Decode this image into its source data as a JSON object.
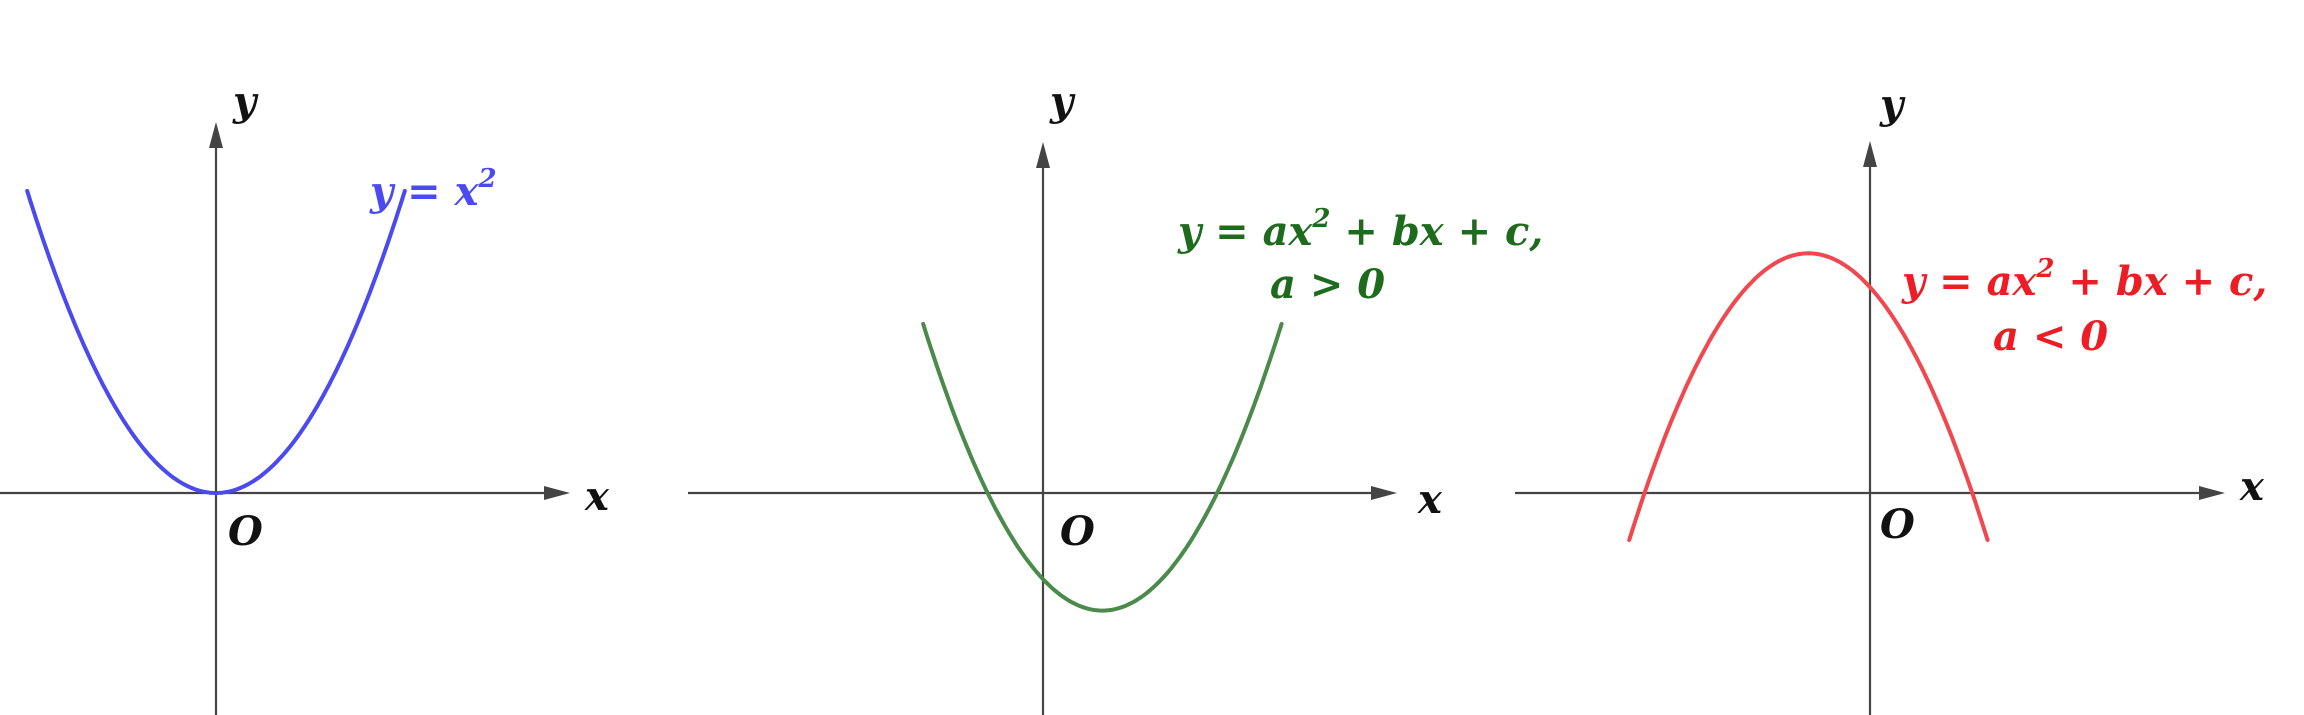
{
  "colors": {
    "axis": "#444444",
    "text": "#111111",
    "panel_1_curve": "#4a4af0",
    "panel_2_curve": "#4a8a4a",
    "panel_2_text": "#1e6b1e",
    "panel_3_curve": "#f0484e",
    "panel_3_text": "#ee1c24"
  },
  "panels": [
    {
      "x_axis_label": "x",
      "y_axis_label": "y",
      "origin_label": "O",
      "equation": {
        "lead": "y = x",
        "exponent": "2",
        "tail": ""
      },
      "condition": "",
      "curve": {
        "a": 1,
        "vertex": [
          0,
          0
        ],
        "x_range": [
          -1.6,
          1.6
        ]
      }
    },
    {
      "x_axis_label": "x",
      "y_axis_label": "y",
      "origin_label": "O",
      "equation": {
        "lead": "y = ax",
        "exponent": "2",
        "tail": " + bx + c,"
      },
      "condition": "a > 0",
      "curve": {
        "a": 1,
        "vertex": [
          0.53,
          -1.05
        ],
        "x_range": [
          -1.07,
          2.13
        ]
      }
    },
    {
      "x_axis_label": "x",
      "y_axis_label": "y",
      "origin_label": "O",
      "equation": {
        "lead": "y = ax",
        "exponent": "2",
        "tail": " + bx + c,"
      },
      "condition": "a < 0",
      "curve": {
        "a": -1,
        "vertex": [
          -0.55,
          2.14
        ],
        "x_range": [
          -2.15,
          1.05
        ]
      }
    }
  ]
}
